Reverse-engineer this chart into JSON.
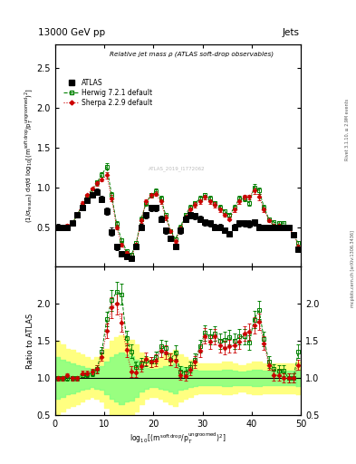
{
  "title_top_left": "13000 GeV pp",
  "title_top_right": "Jets",
  "plot_title": "Relative jet mass ρ (ATLAS soft-drop observables)",
  "watermark": "ATLAS_2019_I1772062",
  "right_label1": "Rivet 3.1.10, ≥ 2.9M events",
  "right_label2": "mcplots.cern.ch [arXiv:1306.3436]",
  "x_edges": [
    0,
    1,
    2,
    3,
    4,
    5,
    6,
    7,
    8,
    9,
    10,
    11,
    12,
    13,
    14,
    15,
    16,
    17,
    18,
    19,
    20,
    21,
    22,
    23,
    24,
    25,
    26,
    27,
    28,
    29,
    30,
    31,
    32,
    33,
    34,
    35,
    36,
    37,
    38,
    39,
    40,
    41,
    42,
    43,
    44,
    45,
    46,
    47,
    48,
    49,
    50
  ],
  "atlas_y": [
    0.5,
    0.49,
    0.5,
    0.55,
    0.65,
    0.75,
    0.84,
    0.9,
    0.94,
    0.85,
    0.7,
    0.44,
    0.25,
    0.16,
    0.13,
    0.11,
    0.26,
    0.5,
    0.65,
    0.74,
    0.74,
    0.6,
    0.46,
    0.36,
    0.26,
    0.46,
    0.6,
    0.65,
    0.64,
    0.6,
    0.56,
    0.55,
    0.5,
    0.5,
    0.46,
    0.42,
    0.5,
    0.55,
    0.55,
    0.54,
    0.56,
    0.5,
    0.49,
    0.49,
    0.5,
    0.5,
    0.5,
    0.5,
    0.4,
    0.22
  ],
  "herwig_y": [
    0.5,
    0.49,
    0.5,
    0.55,
    0.65,
    0.78,
    0.88,
    0.96,
    1.06,
    1.16,
    1.26,
    0.9,
    0.54,
    0.34,
    0.2,
    0.15,
    0.3,
    0.6,
    0.8,
    0.9,
    0.95,
    0.86,
    0.65,
    0.45,
    0.35,
    0.5,
    0.65,
    0.75,
    0.8,
    0.86,
    0.9,
    0.86,
    0.8,
    0.75,
    0.7,
    0.65,
    0.75,
    0.86,
    0.86,
    0.8,
    1.0,
    0.96,
    0.75,
    0.6,
    0.56,
    0.55,
    0.55,
    0.5,
    0.4,
    0.3
  ],
  "sherpa_y": [
    0.5,
    0.49,
    0.52,
    0.55,
    0.65,
    0.8,
    0.9,
    0.98,
    1.05,
    1.1,
    1.15,
    0.86,
    0.5,
    0.28,
    0.18,
    0.12,
    0.28,
    0.58,
    0.82,
    0.9,
    0.92,
    0.82,
    0.62,
    0.45,
    0.32,
    0.48,
    0.62,
    0.72,
    0.78,
    0.82,
    0.88,
    0.82,
    0.78,
    0.72,
    0.65,
    0.6,
    0.72,
    0.82,
    0.88,
    0.88,
    0.96,
    0.88,
    0.72,
    0.58,
    0.52,
    0.52,
    0.5,
    0.5,
    0.4,
    0.26
  ],
  "atlas_yerr": [
    0.04,
    0.03,
    0.03,
    0.03,
    0.03,
    0.03,
    0.03,
    0.03,
    0.04,
    0.04,
    0.05,
    0.05,
    0.04,
    0.03,
    0.02,
    0.02,
    0.03,
    0.04,
    0.04,
    0.04,
    0.04,
    0.04,
    0.04,
    0.03,
    0.03,
    0.04,
    0.04,
    0.04,
    0.04,
    0.04,
    0.04,
    0.04,
    0.04,
    0.04,
    0.03,
    0.03,
    0.04,
    0.04,
    0.04,
    0.04,
    0.04,
    0.04,
    0.03,
    0.03,
    0.03,
    0.03,
    0.03,
    0.03,
    0.03,
    0.03
  ],
  "herwig_yerr": [
    0.02,
    0.02,
    0.02,
    0.02,
    0.02,
    0.02,
    0.02,
    0.02,
    0.03,
    0.03,
    0.04,
    0.04,
    0.03,
    0.02,
    0.02,
    0.02,
    0.02,
    0.03,
    0.03,
    0.03,
    0.03,
    0.03,
    0.03,
    0.02,
    0.02,
    0.03,
    0.03,
    0.03,
    0.03,
    0.03,
    0.03,
    0.03,
    0.03,
    0.03,
    0.02,
    0.02,
    0.03,
    0.03,
    0.03,
    0.03,
    0.04,
    0.04,
    0.03,
    0.02,
    0.02,
    0.02,
    0.02,
    0.02,
    0.02,
    0.02
  ],
  "sherpa_yerr": [
    0.02,
    0.02,
    0.02,
    0.02,
    0.02,
    0.02,
    0.02,
    0.02,
    0.03,
    0.03,
    0.04,
    0.04,
    0.03,
    0.02,
    0.02,
    0.02,
    0.02,
    0.03,
    0.03,
    0.03,
    0.03,
    0.03,
    0.03,
    0.02,
    0.02,
    0.03,
    0.03,
    0.03,
    0.03,
    0.03,
    0.03,
    0.03,
    0.03,
    0.03,
    0.02,
    0.02,
    0.03,
    0.03,
    0.03,
    0.03,
    0.04,
    0.04,
    0.03,
    0.02,
    0.02,
    0.02,
    0.02,
    0.02,
    0.02,
    0.02
  ],
  "herwig_ratio": [
    1.0,
    1.0,
    1.0,
    1.0,
    1.0,
    1.04,
    1.05,
    1.07,
    1.13,
    1.36,
    1.8,
    2.05,
    2.16,
    2.13,
    1.54,
    1.36,
    1.15,
    1.2,
    1.23,
    1.22,
    1.28,
    1.43,
    1.41,
    1.25,
    1.35,
    1.09,
    1.08,
    1.15,
    1.25,
    1.43,
    1.61,
    1.56,
    1.6,
    1.5,
    1.52,
    1.55,
    1.5,
    1.56,
    1.56,
    1.48,
    1.79,
    1.92,
    1.53,
    1.22,
    1.12,
    1.1,
    1.1,
    1.0,
    1.0,
    1.36
  ],
  "sherpa_ratio": [
    1.0,
    1.0,
    1.04,
    1.0,
    1.0,
    1.07,
    1.07,
    1.09,
    1.12,
    1.29,
    1.64,
    1.95,
    2.0,
    1.75,
    1.38,
    1.09,
    1.08,
    1.16,
    1.26,
    1.22,
    1.24,
    1.37,
    1.35,
    1.25,
    1.23,
    1.04,
    1.03,
    1.11,
    1.22,
    1.37,
    1.57,
    1.49,
    1.56,
    1.44,
    1.41,
    1.43,
    1.44,
    1.49,
    1.6,
    1.63,
    1.71,
    1.76,
    1.47,
    1.18,
    1.04,
    1.04,
    1.0,
    1.0,
    1.0,
    1.18
  ],
  "herwig_ratio_err": [
    0.03,
    0.03,
    0.03,
    0.03,
    0.03,
    0.03,
    0.03,
    0.04,
    0.05,
    0.06,
    0.1,
    0.14,
    0.14,
    0.14,
    0.1,
    0.09,
    0.07,
    0.07,
    0.07,
    0.07,
    0.08,
    0.09,
    0.09,
    0.08,
    0.09,
    0.07,
    0.07,
    0.07,
    0.08,
    0.09,
    0.1,
    0.1,
    0.1,
    0.1,
    0.1,
    0.1,
    0.1,
    0.1,
    0.1,
    0.1,
    0.12,
    0.12,
    0.1,
    0.08,
    0.07,
    0.07,
    0.07,
    0.06,
    0.06,
    0.09
  ],
  "sherpa_ratio_err": [
    0.03,
    0.03,
    0.03,
    0.03,
    0.03,
    0.03,
    0.03,
    0.04,
    0.05,
    0.06,
    0.1,
    0.14,
    0.14,
    0.12,
    0.09,
    0.07,
    0.07,
    0.07,
    0.08,
    0.07,
    0.08,
    0.09,
    0.09,
    0.08,
    0.08,
    0.06,
    0.06,
    0.07,
    0.08,
    0.09,
    0.1,
    0.1,
    0.1,
    0.09,
    0.09,
    0.09,
    0.09,
    0.1,
    0.1,
    0.11,
    0.11,
    0.11,
    0.09,
    0.07,
    0.07,
    0.07,
    0.06,
    0.06,
    0.06,
    0.07
  ],
  "yellow_lo": [
    0.5,
    0.55,
    0.6,
    0.62,
    0.65,
    0.68,
    0.72,
    0.75,
    0.72,
    0.68,
    0.6,
    0.5,
    0.45,
    0.42,
    0.45,
    0.48,
    0.55,
    0.65,
    0.72,
    0.75,
    0.75,
    0.72,
    0.68,
    0.65,
    0.62,
    0.68,
    0.72,
    0.75,
    0.78,
    0.8,
    0.8,
    0.8,
    0.8,
    0.8,
    0.78,
    0.78,
    0.8,
    0.82,
    0.82,
    0.8,
    0.78,
    0.78,
    0.8,
    0.8,
    0.8,
    0.8,
    0.8,
    0.8,
    0.8,
    0.78
  ],
  "yellow_hi": [
    1.5,
    1.45,
    1.4,
    1.38,
    1.35,
    1.32,
    1.28,
    1.25,
    1.28,
    1.32,
    1.4,
    1.5,
    1.55,
    1.58,
    1.55,
    1.52,
    1.45,
    1.35,
    1.28,
    1.25,
    1.25,
    1.28,
    1.32,
    1.35,
    1.38,
    1.32,
    1.28,
    1.25,
    1.22,
    1.2,
    1.2,
    1.2,
    1.2,
    1.2,
    1.22,
    1.22,
    1.2,
    1.18,
    1.18,
    1.2,
    1.22,
    1.22,
    1.2,
    1.2,
    1.2,
    1.2,
    1.2,
    1.2,
    1.2,
    1.22
  ],
  "green_lo": [
    0.72,
    0.75,
    0.78,
    0.8,
    0.82,
    0.84,
    0.86,
    0.88,
    0.86,
    0.84,
    0.78,
    0.72,
    0.68,
    0.65,
    0.68,
    0.7,
    0.75,
    0.82,
    0.86,
    0.88,
    0.88,
    0.86,
    0.84,
    0.82,
    0.8,
    0.84,
    0.86,
    0.88,
    0.89,
    0.9,
    0.9,
    0.9,
    0.9,
    0.9,
    0.89,
    0.89,
    0.9,
    0.91,
    0.91,
    0.9,
    0.89,
    0.89,
    0.9,
    0.9,
    0.9,
    0.9,
    0.9,
    0.9,
    0.9,
    0.89
  ],
  "green_hi": [
    1.28,
    1.25,
    1.22,
    1.2,
    1.18,
    1.16,
    1.14,
    1.12,
    1.14,
    1.16,
    1.22,
    1.28,
    1.32,
    1.35,
    1.32,
    1.3,
    1.25,
    1.18,
    1.14,
    1.12,
    1.12,
    1.14,
    1.16,
    1.18,
    1.2,
    1.16,
    1.14,
    1.12,
    1.11,
    1.1,
    1.1,
    1.1,
    1.1,
    1.1,
    1.11,
    1.11,
    1.1,
    1.09,
    1.09,
    1.1,
    1.11,
    1.11,
    1.1,
    1.1,
    1.1,
    1.1,
    1.1,
    1.1,
    1.1,
    1.11
  ],
  "xlim": [
    0,
    50
  ],
  "ylim_main": [
    0.0,
    2.8
  ],
  "ylim_ratio": [
    0.5,
    2.5
  ],
  "yticks_main": [
    0.5,
    1.0,
    1.5,
    2.0,
    2.5
  ],
  "yticks_ratio": [
    0.5,
    1.0,
    1.5,
    2.0
  ],
  "xticks": [
    0,
    10,
    20,
    30,
    40,
    50
  ],
  "atlas_color": "#000000",
  "herwig_color": "#008000",
  "sherpa_color": "#CC0000",
  "yellow_color": "#FFFF80",
  "green_color": "#80FF80"
}
